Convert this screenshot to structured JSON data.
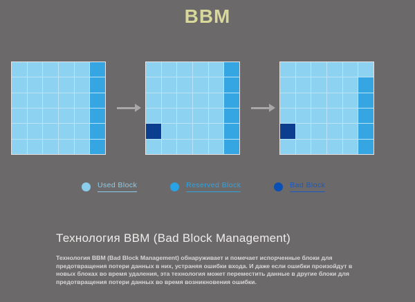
{
  "title": "BBM",
  "colors": {
    "background": "#6c696a",
    "title": "#d8d89a",
    "used": "#8ed2f2",
    "reserved": "#35a6e1",
    "bad": "#0c3e90",
    "grid_line": "#bde4f6",
    "arrow": "#a8a8a8"
  },
  "diagram": {
    "grids": [
      {
        "name": "state-initial",
        "rows": [
          "UUUUUR",
          "UUUUUR",
          "UUUUUR",
          "UUUUUR",
          "UUUUUR",
          "UUUUUR"
        ]
      },
      {
        "name": "state-bad-block-detected",
        "rows": [
          "UUUUUR",
          "UUUUUR",
          "UUUUUR",
          "UUUUUR",
          "BUUUUR",
          "UUUUUR"
        ]
      },
      {
        "name": "state-data-moved-to-reserved",
        "rows": [
          "UUUUUU",
          "UUUUUR",
          "UUUUUR",
          "UUUUUR",
          "BUUUUR",
          "UUUUUR"
        ]
      }
    ],
    "cell_types": {
      "U": "used",
      "R": "reserved",
      "B": "bad"
    }
  },
  "legend": [
    {
      "label": "Used Block",
      "color": "#8ccdeb",
      "text_color": "#8ccdeb"
    },
    {
      "label": "Reserved Block",
      "color": "#29a2e4",
      "text_color": "#2fa3e0"
    },
    {
      "label": "Bad Block",
      "color": "#0a4fb4",
      "text_color": "#155bc8"
    }
  ],
  "content": {
    "heading": "Технология BBM (Bad Block Management)",
    "body": "Технология BBM (Bad Block Management) обнаруживает и помечает испорченные блоки для предотвращения потери данных в них, устраняя ошибки входа. И даже если ошибки произойдут в новых блоках во время удаления, эта технология может переместить данные в другие блоки для предотвращения потери данных во время возникновения ошибки."
  }
}
